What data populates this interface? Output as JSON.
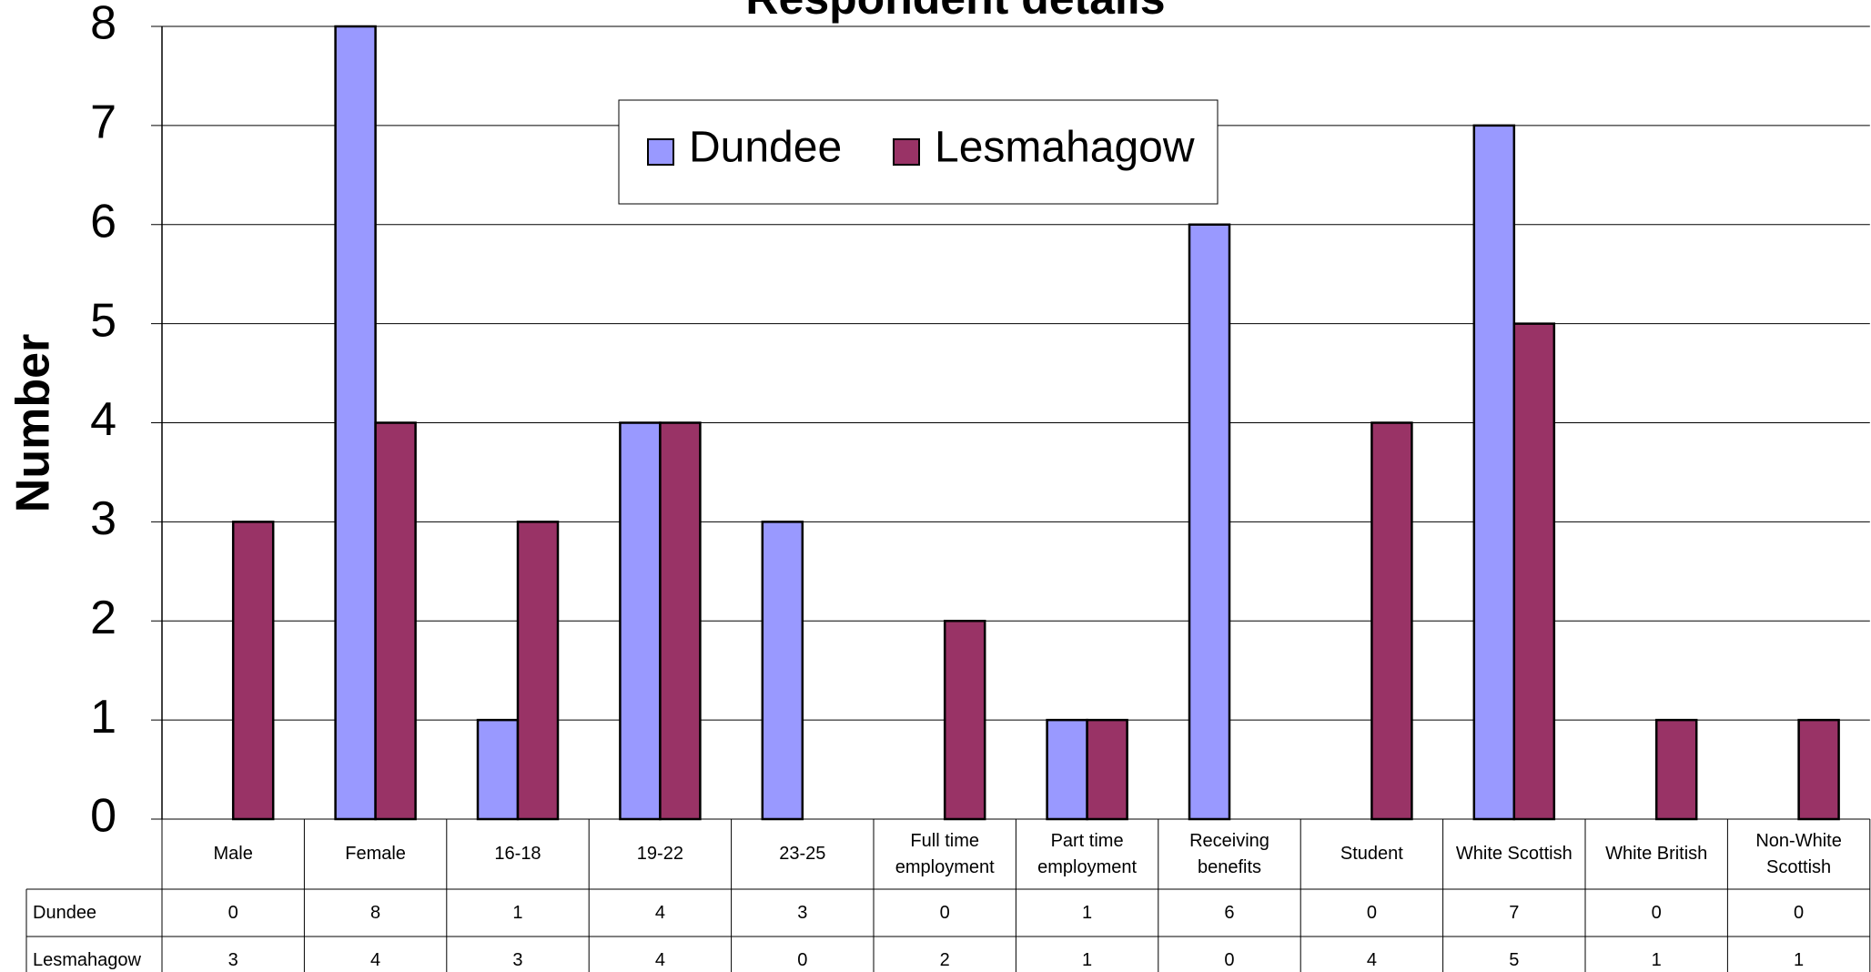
{
  "chart_data": {
    "type": "bar",
    "title": "Respondent details",
    "y_label": "Number",
    "categories": [
      "Male",
      "Female",
      "16-18",
      "19-22",
      "23-25",
      "Full time employment",
      "Part time employment",
      "Receiving benefits",
      "Student",
      "White Scottish",
      "White British",
      "Non-White Scottish"
    ],
    "series": [
      {
        "name": "Dundee",
        "color": "#9999ff",
        "values": [
          0,
          8,
          1,
          4,
          3,
          0,
          1,
          6,
          0,
          7,
          0,
          0
        ]
      },
      {
        "name": "Lesmahagow",
        "color": "#993366",
        "values": [
          3,
          4,
          3,
          4,
          0,
          2,
          1,
          0,
          4,
          5,
          1,
          1
        ]
      }
    ],
    "ylim": [
      0,
      8
    ],
    "yticks": [
      0,
      1,
      2,
      3,
      4,
      5,
      6,
      7,
      8
    ],
    "grid": true,
    "legend": "top",
    "data_table": true
  }
}
